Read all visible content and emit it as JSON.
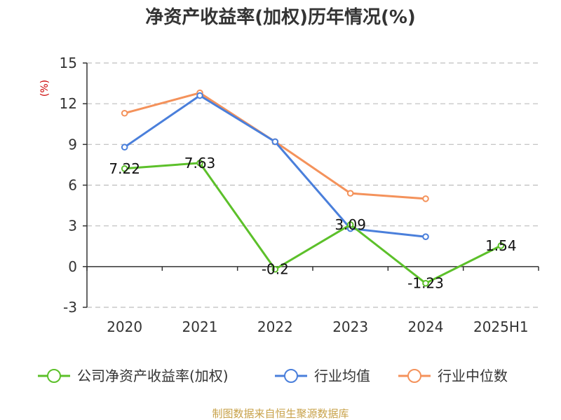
{
  "chart_data": {
    "type": "line",
    "title": "净资产收益率(加权)历年情况(%)",
    "ylabel": "(%)",
    "categories": [
      "2020",
      "2021",
      "2022",
      "2023",
      "2024",
      "2025H1"
    ],
    "y_ticks": [
      "15",
      "12",
      "9",
      "6",
      "3",
      "0",
      "-3"
    ],
    "ylim": [
      -3,
      15
    ],
    "grid": true,
    "legend_position": "bottom",
    "series": [
      {
        "name": "公司净资产收益率(加权)",
        "values": [
          7.22,
          7.63,
          -0.2,
          3.09,
          -1.23,
          1.54
        ],
        "labels": [
          "7.22",
          "7.63",
          "-0.2",
          "3.09",
          "-1.23",
          "1.54"
        ],
        "color": "#5cc02a"
      },
      {
        "name": "行业均值",
        "values": [
          8.8,
          12.6,
          9.2,
          2.8,
          2.2,
          null
        ],
        "color": "#4a7fdb"
      },
      {
        "name": "行业中位数",
        "values": [
          11.3,
          12.8,
          9.2,
          5.4,
          5.0,
          null
        ],
        "color": "#f4925b"
      }
    ],
    "source": "制图数据来自恒生聚源数据库"
  }
}
